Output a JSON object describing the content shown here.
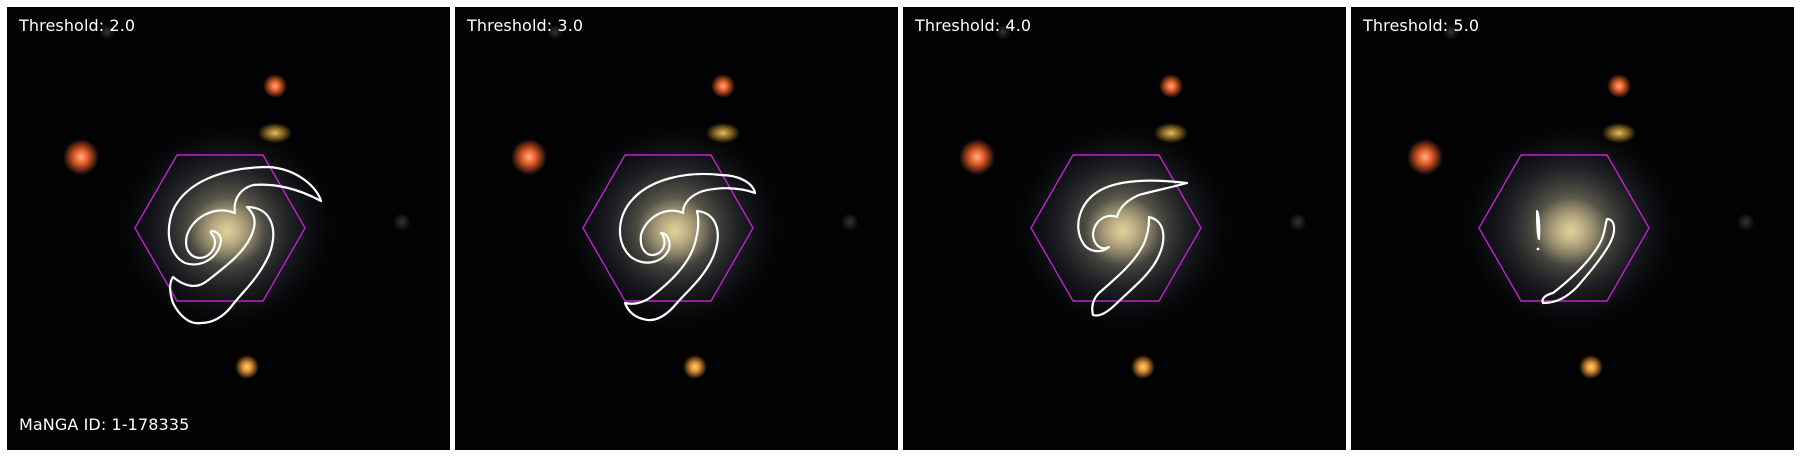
{
  "panels": [
    {
      "threshold_label": "Threshold: 2.0",
      "id_label": "MaNGA ID: 1-178335"
    },
    {
      "threshold_label": "Threshold: 3.0"
    },
    {
      "threshold_label": "Threshold: 4.0"
    },
    {
      "threshold_label": "Threshold: 5.0"
    }
  ],
  "colors": {
    "background": "#020203",
    "hexagon": "#c020d0",
    "contour": "#ffffff",
    "galaxy_core": "#c9b98a",
    "star_red": "#e05a28",
    "star_orange": "#d98a30"
  },
  "icons": {
    "hexagon": "ifu-hexagon-outline",
    "contour": "spiral-arm-contour"
  }
}
